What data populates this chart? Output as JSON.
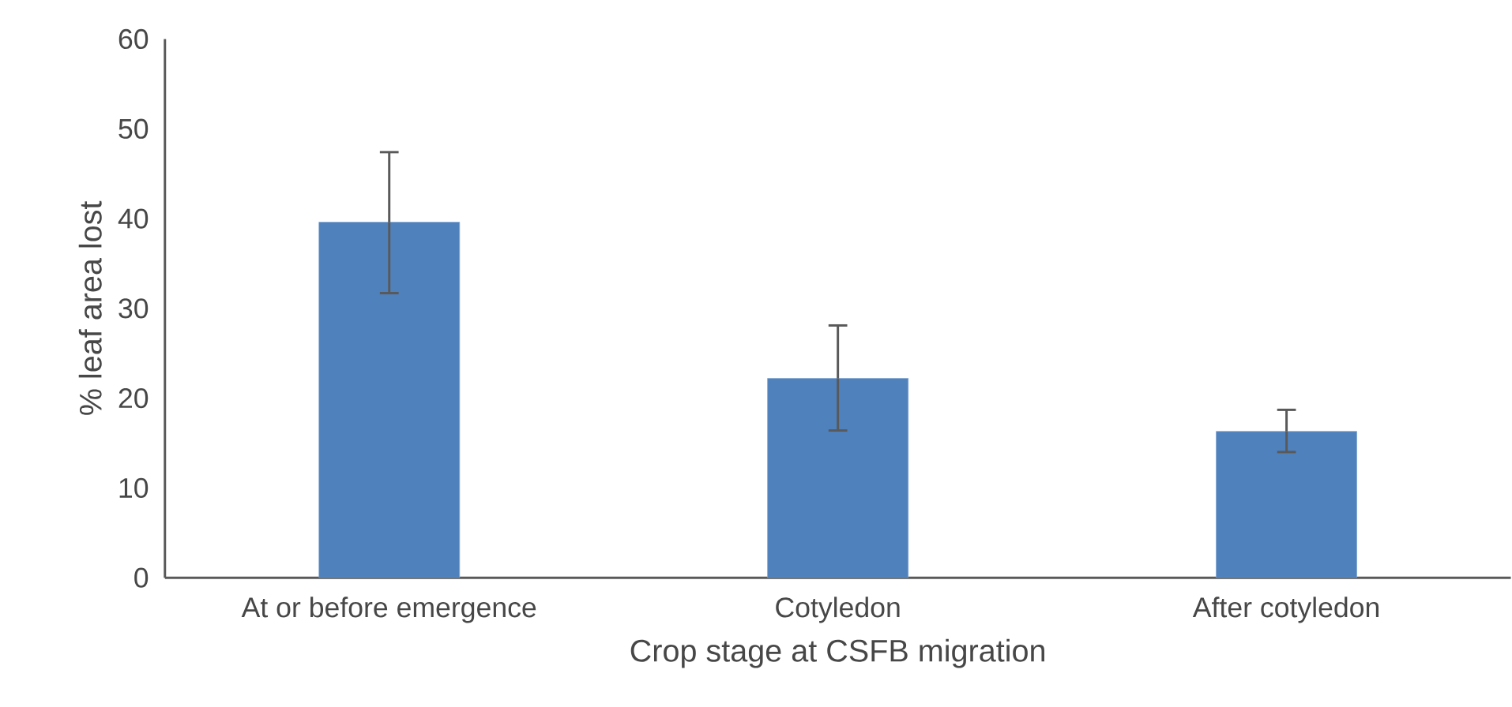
{
  "chart_data": {
    "type": "bar",
    "xlabel": "Crop stage at CSFB migration",
    "ylabel": "% leaf area lost",
    "categories": [
      "At or before emergence",
      "Cotyledon",
      "After cotyledon"
    ],
    "values": [
      39.6,
      22.2,
      16.3
    ],
    "errors": [
      [
        31.7,
        47.4
      ],
      [
        16.4,
        28.1
      ],
      [
        14.0,
        18.7
      ]
    ],
    "color": "#4f81bd",
    "ylim": [
      0,
      60
    ],
    "yticks": [
      0,
      10,
      20,
      30,
      40,
      50,
      60
    ]
  }
}
